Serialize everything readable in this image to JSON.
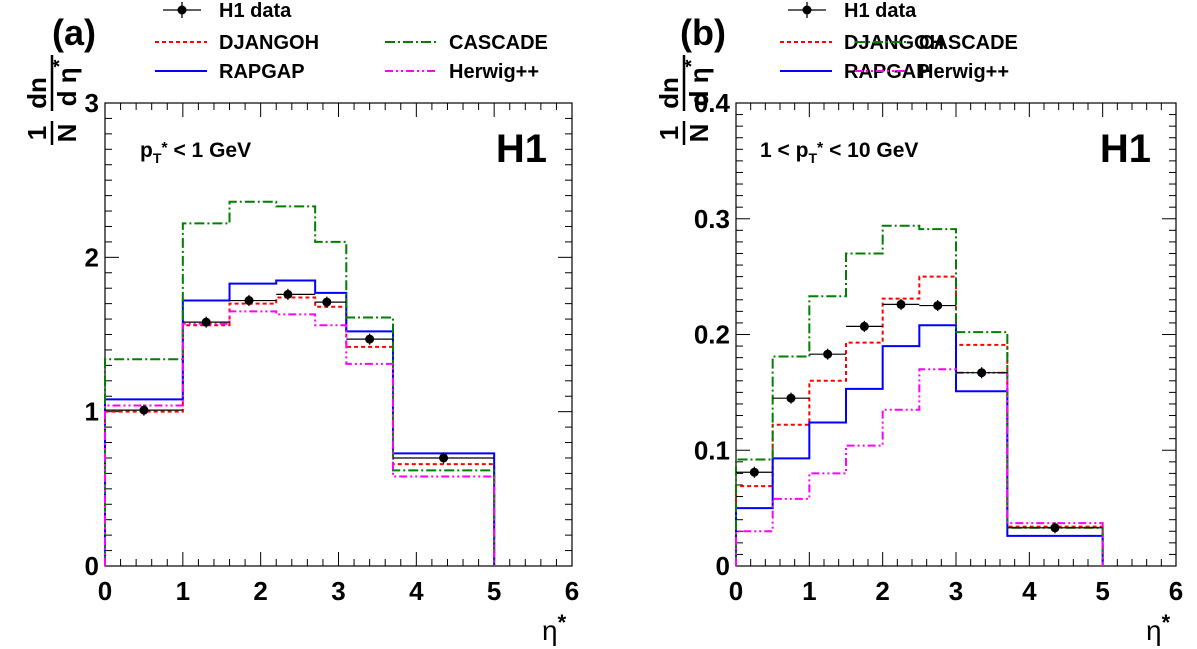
{
  "chart_data": [
    {
      "type": "line",
      "panel_label": "(a)",
      "annotation": "p_T* < 1 GeV",
      "watermark": "H1",
      "xlabel": "η*",
      "ylabel": "1/N dn/dη*",
      "xlim": [
        0,
        6
      ],
      "ylim": [
        0,
        3
      ],
      "xticks": [
        "0",
        "1",
        "2",
        "3",
        "4",
        "5",
        "6"
      ],
      "yticks": [
        "0",
        "1",
        "2",
        "3"
      ],
      "grid": false,
      "legend": "top",
      "bin_edges": [
        0,
        1,
        1.6,
        2.2,
        2.7,
        3.1,
        3.7,
        5
      ],
      "series": [
        {
          "name": "H1 data",
          "style": "points",
          "color": "#000000",
          "x": [
            0.5,
            1.3,
            1.85,
            2.35,
            2.85,
            3.4,
            4.35
          ],
          "y": [
            1.01,
            1.58,
            1.72,
            1.76,
            1.71,
            1.47,
            0.7
          ]
        },
        {
          "name": "DJANGOH",
          "style": "dotted",
          "color": "#ff0000",
          "values": [
            1.0,
            1.56,
            1.7,
            1.74,
            1.68,
            1.42,
            0.66
          ]
        },
        {
          "name": "RAPGAP",
          "style": "solid",
          "color": "#0000ff",
          "values": [
            1.08,
            1.72,
            1.83,
            1.85,
            1.77,
            1.52,
            0.73
          ]
        },
        {
          "name": "CASCADE",
          "style": "dashdot",
          "color": "#007f00",
          "values": [
            1.34,
            2.22,
            2.36,
            2.33,
            2.1,
            1.61,
            0.62
          ]
        },
        {
          "name": "Herwig++",
          "style": "dashdotdot",
          "color": "#ff00ff",
          "values": [
            1.04,
            1.57,
            1.65,
            1.63,
            1.56,
            1.31,
            0.58
          ]
        }
      ]
    },
    {
      "type": "line",
      "panel_label": "(b)",
      "annotation": "1 < p_T* < 10 GeV",
      "watermark": "H1",
      "xlabel": "η*",
      "ylabel": "1/N dn/dη*",
      "xlim": [
        0,
        6
      ],
      "ylim": [
        0,
        0.4
      ],
      "xticks": [
        "0",
        "1",
        "2",
        "3",
        "4",
        "5",
        "6"
      ],
      "yticks": [
        "0",
        "0.1",
        "0.2",
        "0.3",
        "0.4"
      ],
      "grid": false,
      "legend": "top",
      "bin_edges": [
        0,
        0.5,
        1.0,
        1.5,
        2.0,
        2.5,
        3.0,
        3.7,
        5
      ],
      "series": [
        {
          "name": "H1 data",
          "style": "points",
          "color": "#000000",
          "x": [
            0.25,
            0.75,
            1.25,
            1.75,
            2.25,
            2.75,
            3.35,
            4.35
          ],
          "y": [
            0.081,
            0.145,
            0.183,
            0.207,
            0.226,
            0.225,
            0.167,
            0.033
          ]
        },
        {
          "name": "DJANGOH",
          "style": "dotted",
          "color": "#ff0000",
          "values": [
            0.069,
            0.122,
            0.16,
            0.193,
            0.231,
            0.25,
            0.191,
            0.034
          ]
        },
        {
          "name": "RAPGAP",
          "style": "solid",
          "color": "#0000ff",
          "values": [
            0.05,
            0.093,
            0.124,
            0.153,
            0.19,
            0.208,
            0.151,
            0.026
          ]
        },
        {
          "name": "CASCADE",
          "style": "dashdot",
          "color": "#007f00",
          "values": [
            0.092,
            0.181,
            0.233,
            0.27,
            0.294,
            0.291,
            0.202,
            0.033
          ]
        },
        {
          "name": "Herwig++",
          "style": "dashdotdot",
          "color": "#ff00ff",
          "values": [
            0.03,
            0.058,
            0.08,
            0.104,
            0.135,
            0.17,
            0.167,
            0.037
          ]
        }
      ]
    }
  ]
}
